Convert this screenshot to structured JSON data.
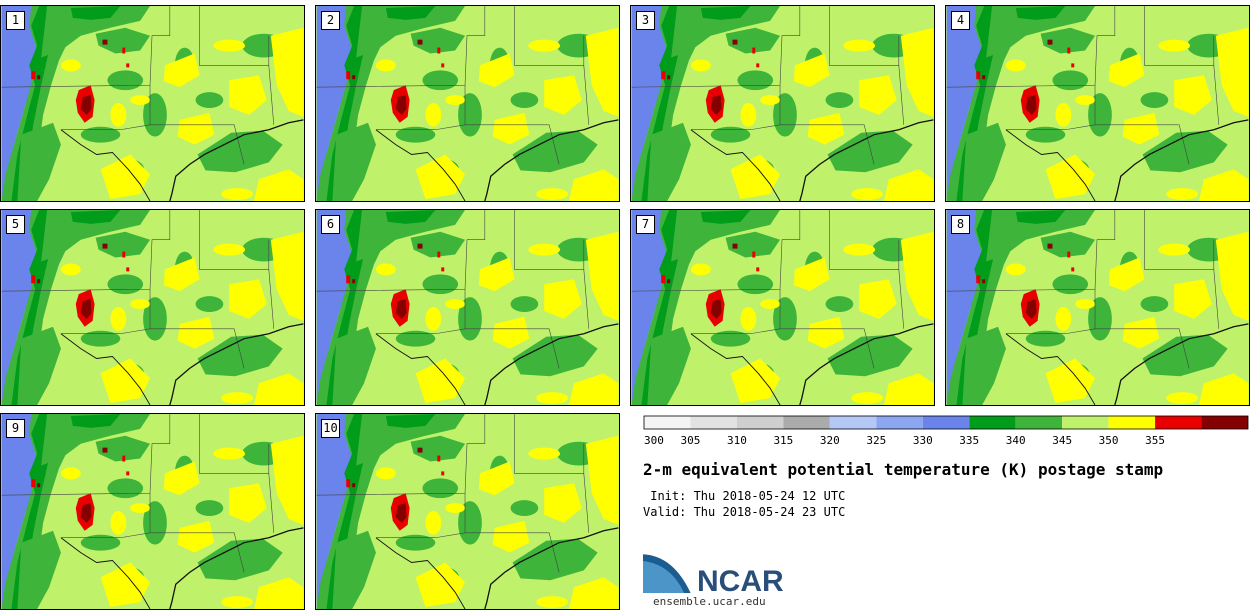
{
  "stamps": [
    {
      "label": "1"
    },
    {
      "label": "2"
    },
    {
      "label": "3"
    },
    {
      "label": "4"
    },
    {
      "label": "5"
    },
    {
      "label": "6"
    },
    {
      "label": "7"
    },
    {
      "label": "8"
    },
    {
      "label": "9"
    },
    {
      "label": "10"
    }
  ],
  "colorbar": {
    "ticks": [
      "300",
      "305",
      "310",
      "315",
      "320",
      "325",
      "330",
      "335",
      "340",
      "345",
      "350",
      "355"
    ],
    "colors": [
      "#f4f4f4",
      "#e2e2e2",
      "#cfcfcf",
      "#ababab",
      "#b4c8f5",
      "#8ca6f2",
      "#6a84ec",
      "#009c1a",
      "#3eb43a",
      "#bff26a",
      "#ffff00",
      "#e80000",
      "#850000"
    ]
  },
  "title": "2-m equivalent potential temperature (K) postage stamp",
  "init": " Init: Thu 2018-05-24 12 UTC",
  "valid": "Valid: Thu 2018-05-24 23 UTC",
  "logo": {
    "text": "NCAR",
    "url": "ensemble.ucar.edu",
    "colors": {
      "arc_dark": "#1b5c91",
      "arc_light": "#4c95c8",
      "text": "#2a4e7a"
    }
  },
  "map_colors": {
    "ocean": "#6a84ec",
    "light_green": "#bff26a",
    "mid_green": "#3eb43a",
    "dark_green": "#009c1a",
    "yellow": "#ffff00",
    "red": "#e80000",
    "dark_red": "#850000"
  }
}
